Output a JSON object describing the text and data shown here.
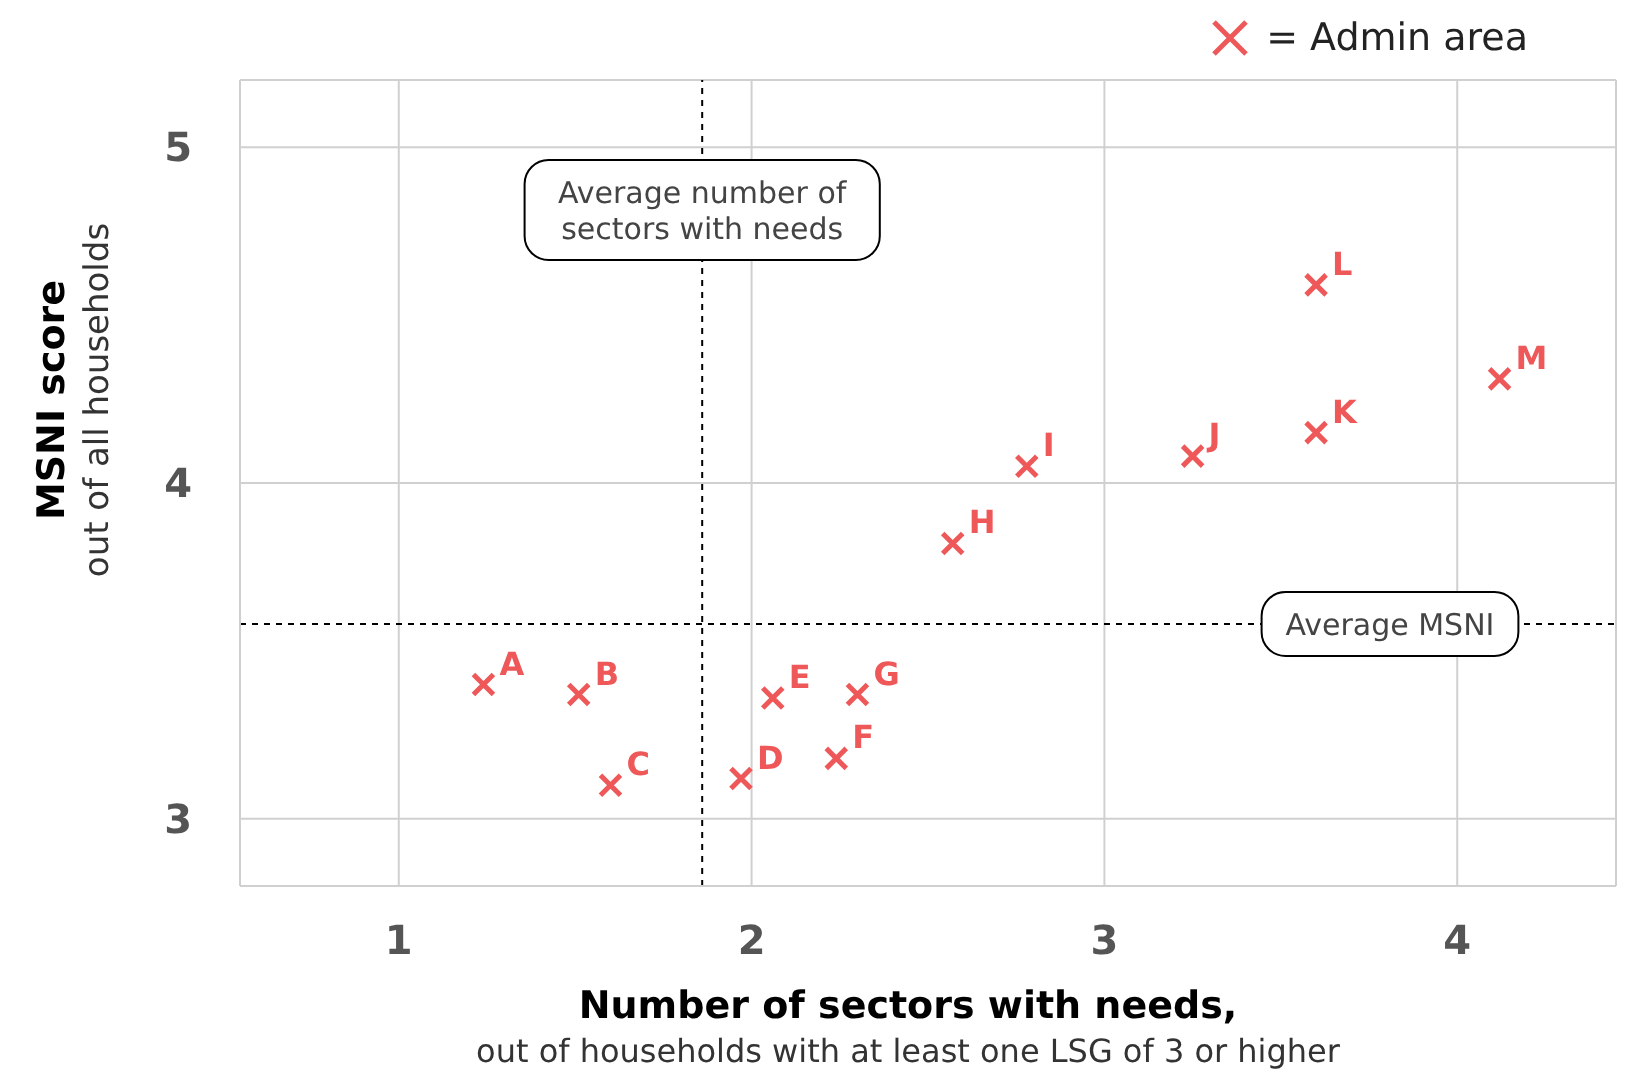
{
  "chart_data": {
    "type": "scatter",
    "xlabel": "Number of sectors with needs,\nout of households with at least one LSG of 3 or higher",
    "ylabel": "MSNI score\nout of all households",
    "xlim": [
      0.55,
      4.45
    ],
    "xticks": [
      1,
      2,
      3,
      4
    ],
    "ylim": [
      2.8,
      5.2
    ],
    "yticks": [
      3,
      4,
      5
    ],
    "grid": true,
    "legend": "top right",
    "marker": "cross",
    "series": [
      {
        "name": "= Admin area",
        "color": "#ee5859",
        "x": [
          1.24,
          1.51,
          1.6,
          1.97,
          2.06,
          2.24,
          2.3,
          2.57,
          2.78,
          3.25,
          3.6,
          3.6,
          4.12
        ],
        "values": [
          3.4,
          3.37,
          3.1,
          3.12,
          3.36,
          3.18,
          3.37,
          3.82,
          4.05,
          4.08,
          4.15,
          4.59,
          4.31
        ]
      }
    ],
    "ref_lines": [
      {
        "axis": "x",
        "value": 1.86,
        "label": "Average number of sectors with needs",
        "line_style": "dotted",
        "color": "#000000"
      },
      {
        "axis": "y",
        "value": 3.58,
        "label": "Average MSNI",
        "line_style": "dotted",
        "color": "#000000"
      }
    ],
    "annotations": [
      {
        "text": "A",
        "x": 1.24,
        "y": 3.4
      },
      {
        "text": "B",
        "x": 1.51,
        "y": 3.37
      },
      {
        "text": "C",
        "x": 1.6,
        "y": 3.1
      },
      {
        "text": "D",
        "x": 1.97,
        "y": 3.12
      },
      {
        "text": "E",
        "x": 2.06,
        "y": 3.36
      },
      {
        "text": "F",
        "x": 2.24,
        "y": 3.18
      },
      {
        "text": "G",
        "x": 2.3,
        "y": 3.37
      },
      {
        "text": "H",
        "x": 2.57,
        "y": 3.82
      },
      {
        "text": "I",
        "x": 2.78,
        "y": 4.05
      },
      {
        "text": "J",
        "x": 3.25,
        "y": 4.08
      },
      {
        "text": "K",
        "x": 3.6,
        "y": 4.15
      },
      {
        "text": "L",
        "x": 3.6,
        "y": 4.59
      },
      {
        "text": "M",
        "x": 4.12,
        "y": 4.31
      }
    ]
  }
}
